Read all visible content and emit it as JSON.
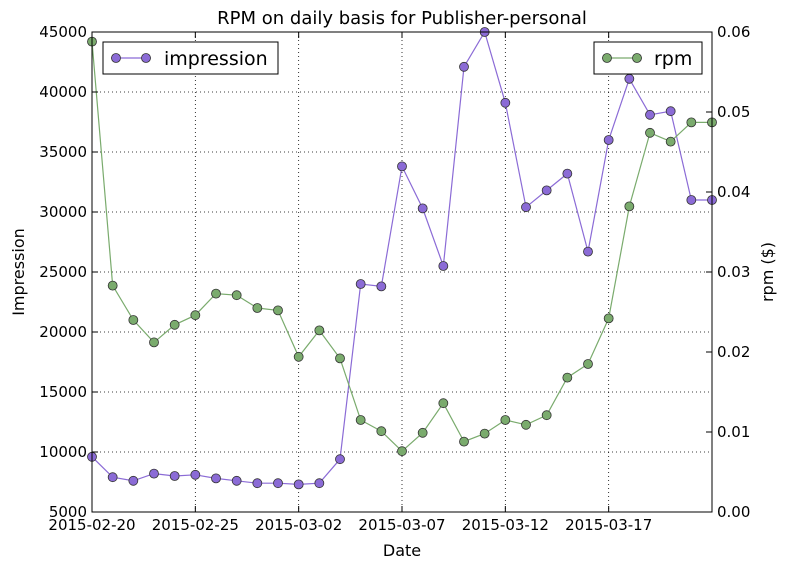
{
  "chart_data": {
    "type": "line",
    "title": "RPM on daily basis for Publisher-personal",
    "xlabel": "Date",
    "ylabel": "Impression",
    "y2label": "rpm ($)",
    "x": [
      "2015-02-20",
      "2015-02-21",
      "2015-02-22",
      "2015-02-23",
      "2015-02-24",
      "2015-02-25",
      "2015-02-26",
      "2015-02-27",
      "2015-02-28",
      "2015-03-01",
      "2015-03-02",
      "2015-03-03",
      "2015-03-04",
      "2015-03-05",
      "2015-03-06",
      "2015-03-07",
      "2015-03-08",
      "2015-03-09",
      "2015-03-10",
      "2015-03-11",
      "2015-03-12",
      "2015-03-13",
      "2015-03-14",
      "2015-03-15",
      "2015-03-16",
      "2015-03-17",
      "2015-03-18",
      "2015-03-19",
      "2015-03-20",
      "2015-03-21",
      "2015-03-22"
    ],
    "xticks": [
      "2015-02-20",
      "2015-02-25",
      "2015-03-02",
      "2015-03-07",
      "2015-03-12",
      "2015-03-17"
    ],
    "ylim": [
      5000,
      45000
    ],
    "yticks": [
      5000,
      10000,
      15000,
      20000,
      25000,
      30000,
      35000,
      40000,
      45000
    ],
    "y2lim": [
      0.0,
      0.06
    ],
    "y2ticks": [
      "0.00",
      "0.01",
      "0.02",
      "0.03",
      "0.04",
      "0.05",
      "0.06"
    ],
    "grid": true,
    "series": [
      {
        "name": "impression",
        "axis": "left",
        "color": "#8b6bd6",
        "legend_position": "top-left",
        "values": [
          9600,
          7900,
          7600,
          8200,
          8000,
          8100,
          7800,
          7600,
          7400,
          7400,
          7300,
          7400,
          9400,
          24000,
          23800,
          33800,
          30300,
          25500,
          42100,
          45000,
          39100,
          30400,
          31800,
          33200,
          26700,
          36000,
          41100,
          38100,
          38400,
          31000,
          31000
        ]
      },
      {
        "name": "rpm",
        "axis": "right",
        "color": "#7aab6d",
        "legend_position": "top-right",
        "values": [
          0.0588,
          0.0283,
          0.024,
          0.0212,
          0.0234,
          0.0246,
          0.0273,
          0.0271,
          0.0255,
          0.0252,
          0.0194,
          0.0227,
          0.0192,
          0.0115,
          0.0101,
          0.0076,
          0.0099,
          0.0136,
          0.0088,
          0.0098,
          0.0115,
          0.0109,
          0.0121,
          0.0168,
          0.0185,
          0.0242,
          0.0382,
          0.0474,
          0.0463,
          0.0487,
          0.0487
        ]
      }
    ]
  }
}
